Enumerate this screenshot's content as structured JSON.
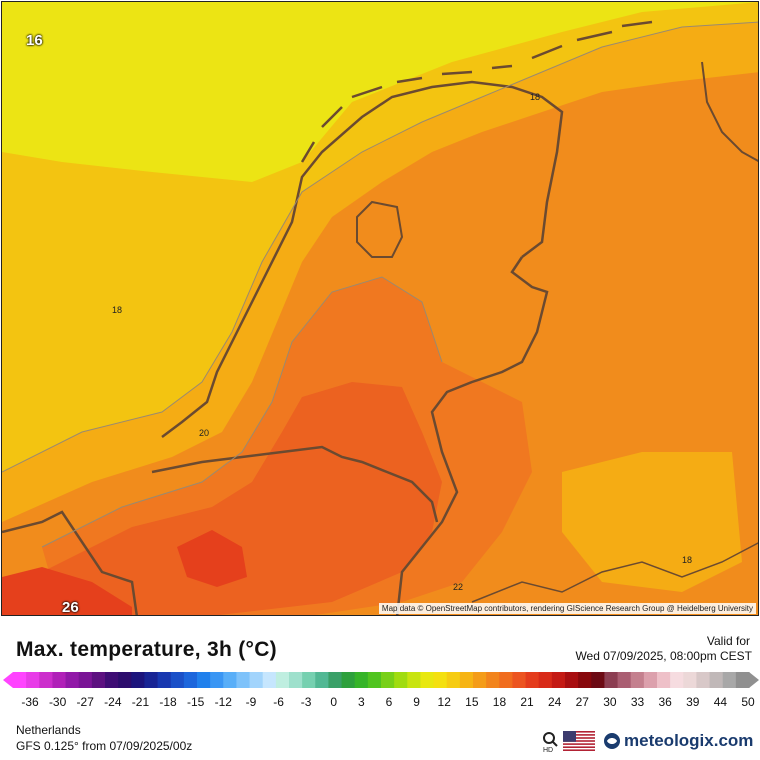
{
  "map": {
    "attribution": "Map data © OpenStreetMap contributors, rendering GIScience Research Group @ Heidelberg University",
    "contour_labels": [
      "16",
      "18",
      "18",
      "20",
      "18",
      "22"
    ],
    "corner_labels": [
      "16",
      "26"
    ],
    "colors": {
      "t16": "#ece414",
      "t18": "#f3c411",
      "t19": "#f5ac14",
      "t20": "#f18c1c",
      "t21": "#f07820",
      "t22": "#ec6220",
      "t23": "#e5401c",
      "border": "#6b4a30"
    }
  },
  "header": {
    "title": "Max. temperature, 3h (°C)",
    "valid_label": "Valid for",
    "valid_date": "Wed 07/09/2025, 08:00pm CEST"
  },
  "scale": {
    "ticks": [
      "-36",
      "-30",
      "-27",
      "-24",
      "-21",
      "-18",
      "-15",
      "-12",
      "-9",
      "-6",
      "-3",
      "0",
      "3",
      "6",
      "9",
      "12",
      "15",
      "18",
      "21",
      "24",
      "27",
      "30",
      "33",
      "36",
      "39",
      "44",
      "50"
    ],
    "colors": [
      "#ff44ff",
      "#e83ce8",
      "#cc2ecc",
      "#b020b8",
      "#9118a8",
      "#7a1496",
      "#5c1080",
      "#3e0c74",
      "#2c0c6c",
      "#1c147c",
      "#182494",
      "#1838b0",
      "#1a50c8",
      "#1c66dc",
      "#2080ec",
      "#3a96f4",
      "#58aef8",
      "#7ec2fa",
      "#a2d4fc",
      "#c6e6fe",
      "#bfeee0",
      "#9ee0cc",
      "#76d0b0",
      "#52b894",
      "#3aa068",
      "#2ea03c",
      "#36b428",
      "#50c420",
      "#78d018",
      "#a0dc10",
      "#c8e410",
      "#e8e810",
      "#f4e010",
      "#f6cc12",
      "#f6b414",
      "#f49c18",
      "#f2841c",
      "#f06c1e",
      "#ec5420",
      "#e43c1c",
      "#d82a18",
      "#c41a14",
      "#a80e10",
      "#88080c",
      "#6c0a14",
      "#8c3e52",
      "#aa5e72",
      "#c4808e",
      "#dca0ac",
      "#eec0c8",
      "#f6dce0",
      "#ecd8d8",
      "#d8c8c8",
      "#c0b8b8",
      "#a8a8a8",
      "#909090"
    ]
  },
  "footer": {
    "region": "Netherlands",
    "model": "GFS 0.125° from  07/09/2025/00z",
    "brand": "meteologix.com"
  }
}
